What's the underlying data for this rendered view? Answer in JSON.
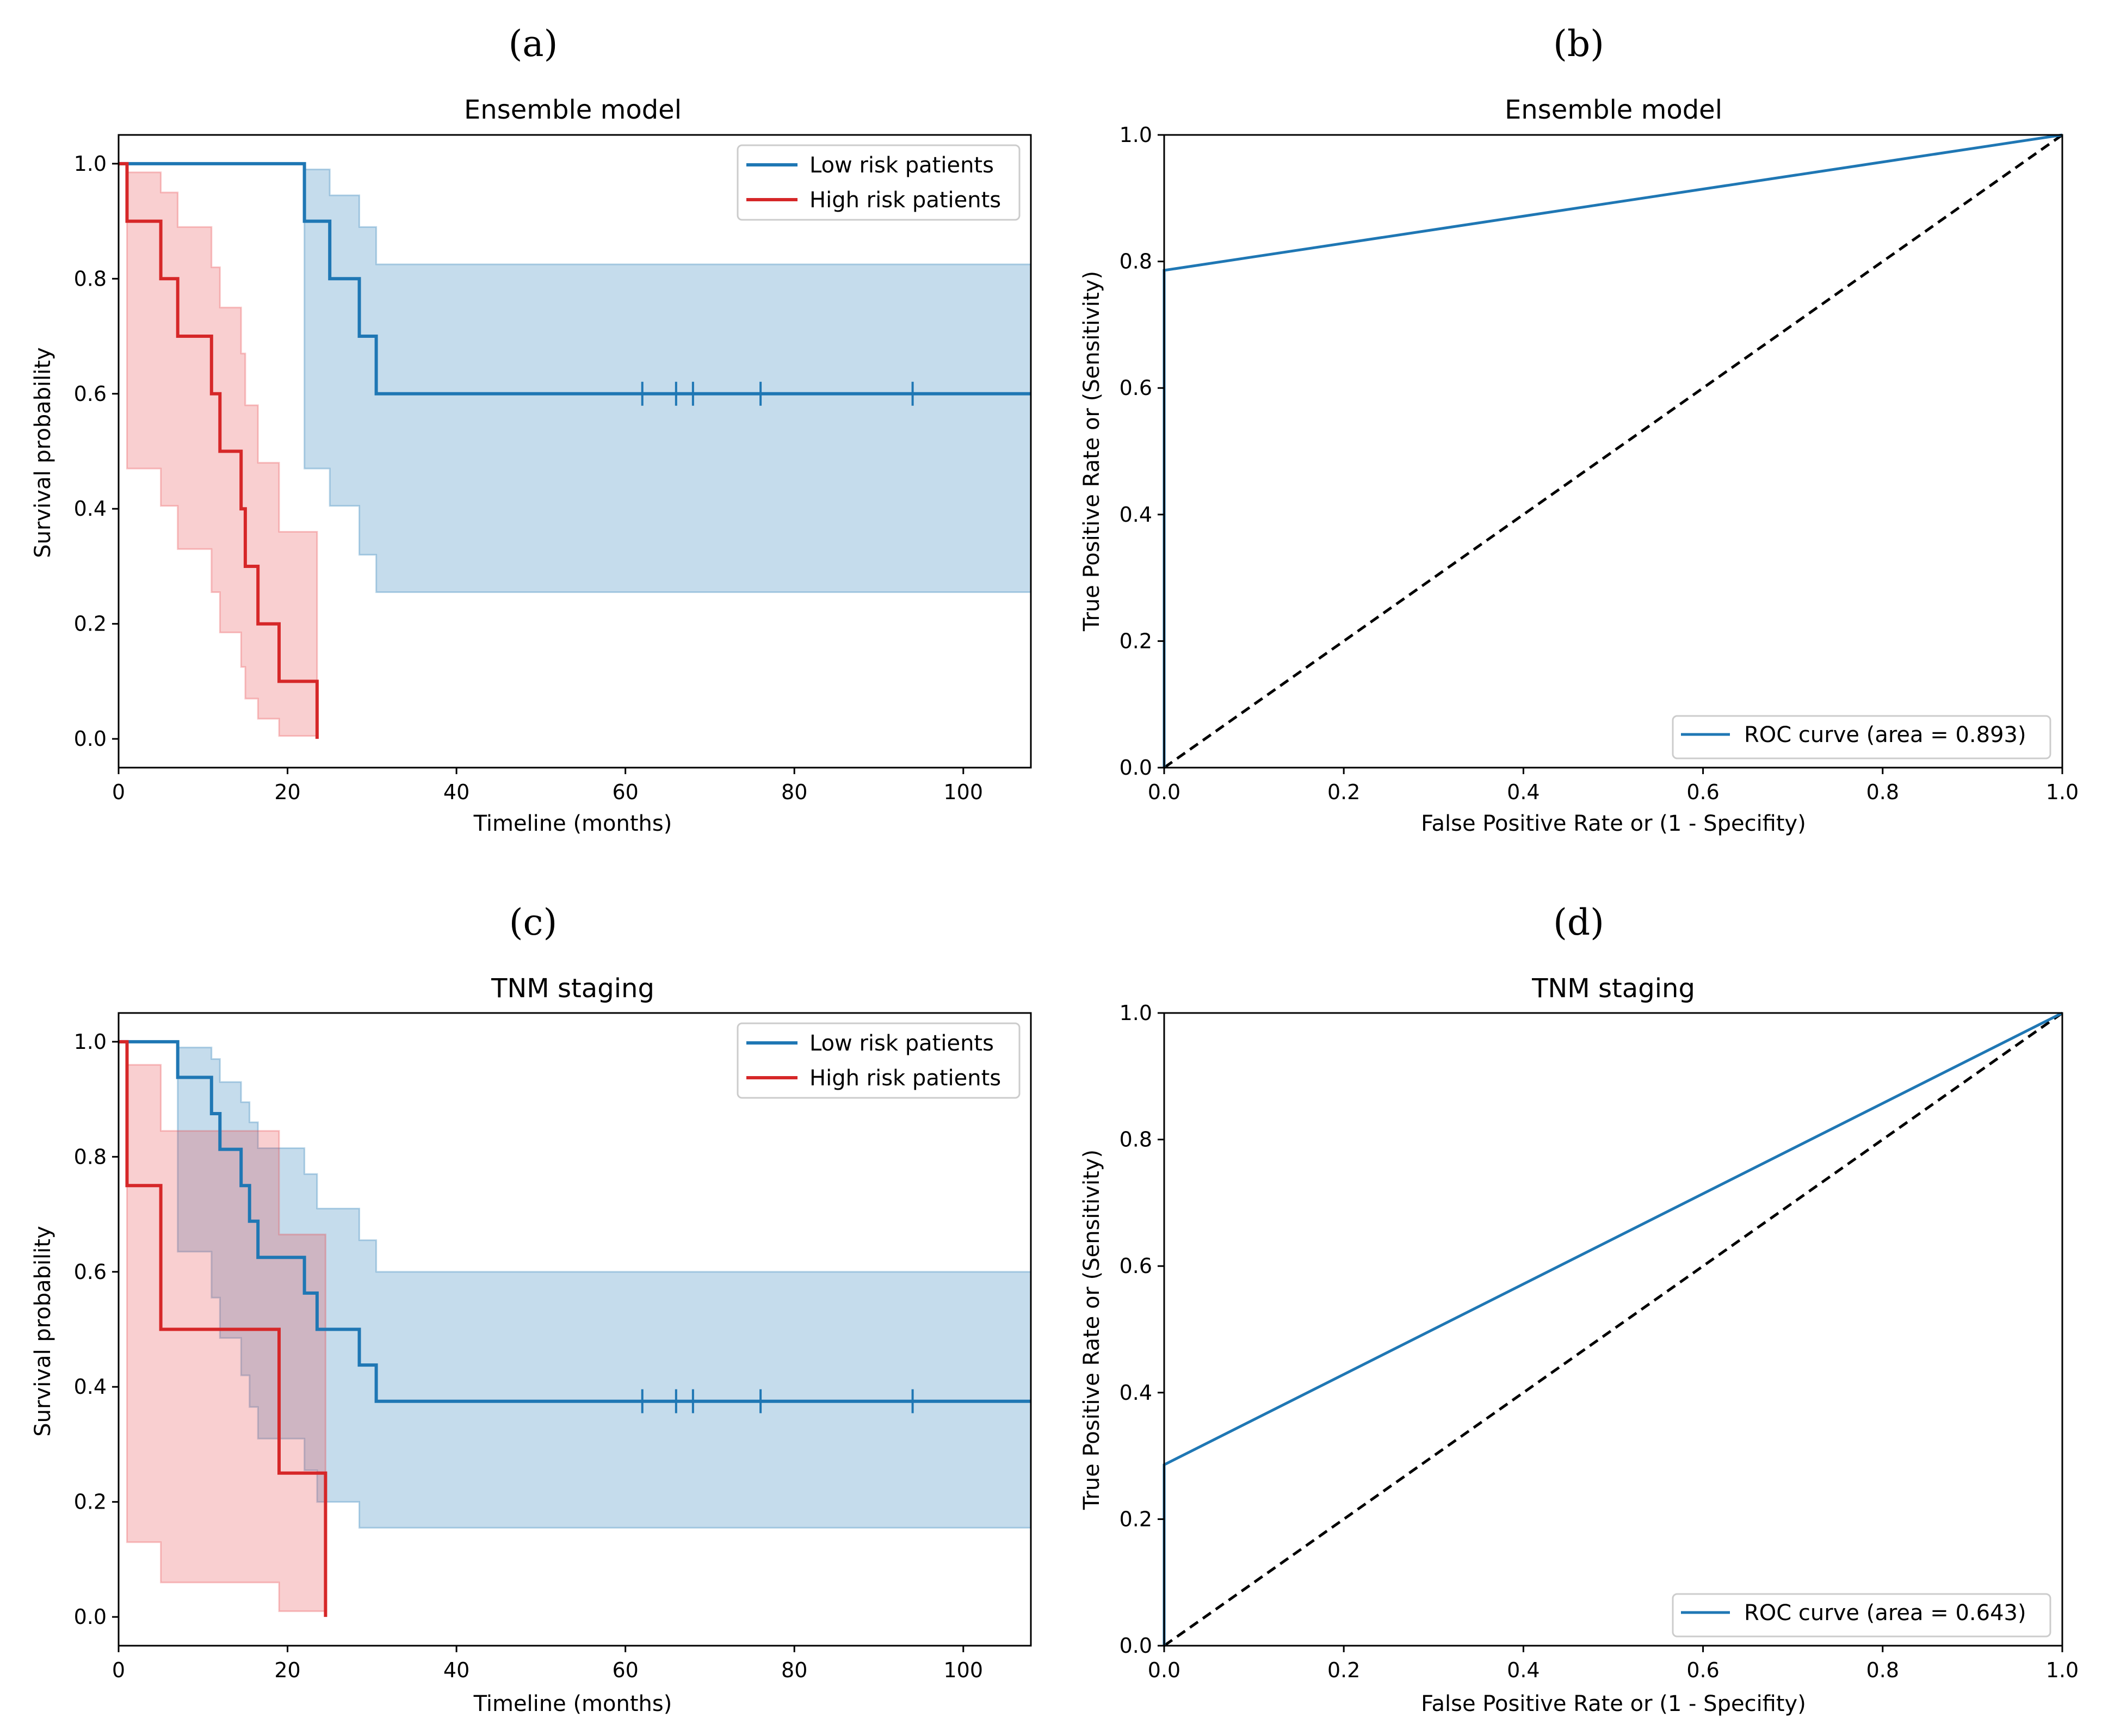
{
  "colors": {
    "low": "#1f77b4",
    "high": "#d62728",
    "low_fill": "#1f77b4",
    "high_fill": "#e8444a",
    "diagonal": "#000000"
  },
  "chart_data": [
    {
      "panel": "(a)",
      "type": "line",
      "subtype": "kaplan-meier",
      "title": "Ensemble model",
      "xlabel": "Timeline (months)",
      "ylabel": "Survival probability",
      "xlim": [
        0,
        108
      ],
      "ylim": [
        -0.05,
        1.05
      ],
      "xticks": [
        0,
        20,
        40,
        60,
        80,
        100
      ],
      "yticks": [
        0.0,
        0.2,
        0.4,
        0.6,
        0.8,
        1.0
      ],
      "legend_position": "top-right",
      "series": [
        {
          "name": "Low risk patients",
          "color_key": "low",
          "x": [
            0,
            22,
            25,
            28.5,
            30.5,
            108
          ],
          "y": [
            1.0,
            0.9,
            0.8,
            0.7,
            0.6,
            0.6
          ],
          "ci_upper": [
            1.0,
            0.99,
            0.945,
            0.89,
            0.825,
            0.825
          ],
          "ci_lower": [
            1.0,
            0.47,
            0.405,
            0.32,
            0.255,
            0.255
          ],
          "censor_x": [
            62,
            66,
            68,
            76,
            94
          ]
        },
        {
          "name": "High risk patients",
          "color_key": "high",
          "x": [
            0,
            1,
            5,
            7,
            11,
            12,
            14.5,
            15,
            16.5,
            19,
            23.5
          ],
          "y": [
            1.0,
            0.9,
            0.8,
            0.7,
            0.6,
            0.5,
            0.4,
            0.3,
            0.2,
            0.1,
            0.0
          ],
          "ci_upper": [
            1.0,
            0.985,
            0.95,
            0.89,
            0.82,
            0.75,
            0.67,
            0.58,
            0.48,
            0.36,
            0.36
          ],
          "ci_lower": [
            1.0,
            0.47,
            0.405,
            0.33,
            0.255,
            0.185,
            0.125,
            0.07,
            0.035,
            0.005,
            0.005
          ],
          "censor_x": []
        }
      ]
    },
    {
      "panel": "(b)",
      "type": "line",
      "subtype": "roc",
      "title": "Ensemble model",
      "xlabel": "False Positive Rate or (1 - Specifity)",
      "ylabel": "True Positive Rate or (Sensitivity)",
      "xlim": [
        0,
        1
      ],
      "ylim": [
        0,
        1
      ],
      "xticks": [
        0.0,
        0.2,
        0.4,
        0.6,
        0.8,
        1.0
      ],
      "yticks": [
        0.0,
        0.2,
        0.4,
        0.6,
        0.8,
        1.0
      ],
      "legend_position": "bottom-right",
      "series": [
        {
          "name": "ROC curve (area = 0.893)",
          "color_key": "low",
          "x": [
            0,
            0,
            1
          ],
          "y": [
            0,
            0.786,
            1.0
          ]
        }
      ],
      "diagonal": {
        "x": [
          0,
          1
        ],
        "y": [
          0,
          1
        ],
        "style": "dashed"
      }
    },
    {
      "panel": "(c)",
      "type": "line",
      "subtype": "kaplan-meier",
      "title": "TNM staging",
      "xlabel": "Timeline (months)",
      "ylabel": "Survival probability",
      "xlim": [
        0,
        108
      ],
      "ylim": [
        -0.05,
        1.05
      ],
      "xticks": [
        0,
        20,
        40,
        60,
        80,
        100
      ],
      "yticks": [
        0.0,
        0.2,
        0.4,
        0.6,
        0.8,
        1.0
      ],
      "legend_position": "top-right",
      "series": [
        {
          "name": "Low risk patients",
          "color_key": "low",
          "x": [
            0,
            7,
            11,
            12,
            14.5,
            15.5,
            16.5,
            22,
            23.5,
            28.5,
            30.5,
            108
          ],
          "y": [
            1.0,
            0.938,
            0.875,
            0.813,
            0.75,
            0.688,
            0.625,
            0.563,
            0.5,
            0.438,
            0.375,
            0.375
          ],
          "ci_upper": [
            1.0,
            0.99,
            0.97,
            0.93,
            0.895,
            0.86,
            0.815,
            0.77,
            0.71,
            0.655,
            0.6,
            0.6
          ],
          "ci_lower": [
            1.0,
            0.635,
            0.555,
            0.485,
            0.42,
            0.365,
            0.31,
            0.255,
            0.2,
            0.155,
            0.155,
            0.155
          ],
          "censor_x": [
            62,
            66,
            68,
            76,
            94
          ]
        },
        {
          "name": "High risk patients",
          "color_key": "high",
          "x": [
            0,
            1,
            5,
            19,
            24.5
          ],
          "y": [
            1.0,
            0.75,
            0.5,
            0.25,
            0.0
          ],
          "ci_upper": [
            1.0,
            0.96,
            0.845,
            0.665,
            0.665
          ],
          "ci_lower": [
            1.0,
            0.13,
            0.06,
            0.01,
            0.01
          ],
          "censor_x": []
        }
      ]
    },
    {
      "panel": "(d)",
      "type": "line",
      "subtype": "roc",
      "title": "TNM staging",
      "xlabel": "False Positive Rate or (1 - Specifity)",
      "ylabel": "True Positive Rate or (Sensitivity)",
      "xlim": [
        0,
        1
      ],
      "ylim": [
        0,
        1
      ],
      "xticks": [
        0.0,
        0.2,
        0.4,
        0.6,
        0.8,
        1.0
      ],
      "yticks": [
        0.0,
        0.2,
        0.4,
        0.6,
        0.8,
        1.0
      ],
      "legend_position": "bottom-right",
      "series": [
        {
          "name": "ROC curve (area = 0.643)",
          "color_key": "low",
          "x": [
            0,
            0,
            1
          ],
          "y": [
            0,
            0.286,
            1.0
          ]
        }
      ],
      "diagonal": {
        "x": [
          0,
          1
        ],
        "y": [
          0,
          1
        ],
        "style": "dashed"
      }
    }
  ]
}
